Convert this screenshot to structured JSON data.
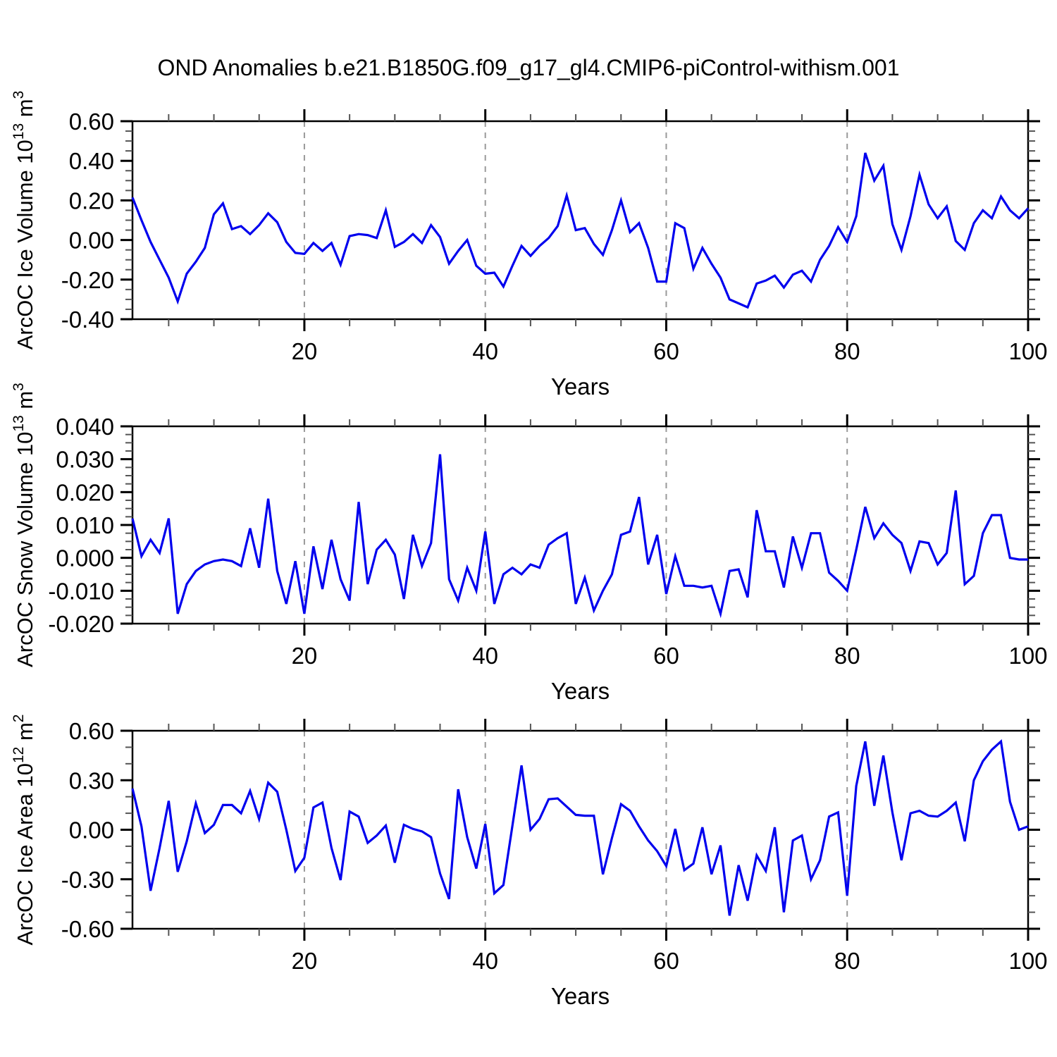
{
  "title": "OND Anomalies b.e21.B1850G.f09_g17_gl4.CMIP6-piControl-withism.001",
  "line_color": "#0000ee",
  "grid_color": "#999999",
  "axis_color": "#000000",
  "chart_data": [
    {
      "type": "line",
      "name": "ice-volume",
      "ylabel": "ArcOC Ice Volume 10^13 m^3",
      "ylabel_parts": [
        {
          "text": "ArcOC Ice Volume 10",
          "sup": false
        },
        {
          "text": "13",
          "sup": true
        },
        {
          "text": " m",
          "sup": false
        },
        {
          "text": "3",
          "sup": true
        }
      ],
      "xlabel": "Years",
      "x_range": [
        1,
        100
      ],
      "x_step": 1,
      "x_ticks": [
        20,
        40,
        60,
        80,
        100
      ],
      "x_tick_labels": [
        "20",
        "40",
        "60",
        "80",
        "100"
      ],
      "x_minor_step": 5,
      "grid_x": [
        20,
        40,
        60,
        80
      ],
      "ylim": [
        -0.4,
        0.6
      ],
      "y_major": 0.2,
      "y_minor": 0.05,
      "y_decimals": 2,
      "values": [
        0.215,
        0.1,
        -0.01,
        -0.1,
        -0.19,
        -0.31,
        -0.17,
        -0.11,
        -0.04,
        0.13,
        0.185,
        0.055,
        0.07,
        0.03,
        0.075,
        0.135,
        0.09,
        -0.01,
        -0.065,
        -0.07,
        -0.015,
        -0.055,
        -0.015,
        -0.125,
        0.02,
        0.03,
        0.025,
        0.01,
        0.15,
        -0.035,
        -0.01,
        0.03,
        -0.015,
        0.075,
        0.015,
        -0.12,
        -0.055,
        0.0,
        -0.13,
        -0.17,
        -0.165,
        -0.235,
        -0.13,
        -0.03,
        -0.08,
        -0.03,
        0.01,
        0.07,
        0.225,
        0.05,
        0.06,
        -0.02,
        -0.075,
        0.05,
        0.2,
        0.04,
        0.085,
        -0.04,
        -0.21,
        -0.21,
        0.085,
        0.06,
        -0.145,
        -0.04,
        -0.12,
        -0.19,
        -0.3,
        -0.32,
        -0.34,
        -0.22,
        -0.205,
        -0.18,
        -0.24,
        -0.175,
        -0.155,
        -0.21,
        -0.1,
        -0.03,
        0.065,
        -0.01,
        0.12,
        0.44,
        0.3,
        0.375,
        0.08,
        -0.05,
        0.12,
        0.33,
        0.18,
        0.11,
        0.17,
        -0.005,
        -0.05,
        0.085,
        0.15,
        0.11,
        0.22,
        0.15,
        0.11,
        0.16
      ]
    },
    {
      "type": "line",
      "name": "snow-volume",
      "ylabel": "ArcOC Snow Volume 10^13 m^3",
      "ylabel_parts": [
        {
          "text": "ArcOC Snow Volume 10",
          "sup": false
        },
        {
          "text": "13",
          "sup": true
        },
        {
          "text": " m",
          "sup": false
        },
        {
          "text": "3",
          "sup": true
        }
      ],
      "xlabel": "Years",
      "x_range": [
        1,
        100
      ],
      "x_step": 1,
      "x_ticks": [
        20,
        40,
        60,
        80,
        100
      ],
      "x_tick_labels": [
        "20",
        "40",
        "60",
        "80",
        "100"
      ],
      "x_minor_step": 5,
      "grid_x": [
        20,
        40,
        60,
        80
      ],
      "ylim": [
        -0.02,
        0.04
      ],
      "y_major": 0.01,
      "y_minor": 0.0025,
      "y_decimals": 3,
      "values": [
        0.012,
        0.0005,
        0.0055,
        0.0015,
        0.012,
        -0.017,
        -0.008,
        -0.004,
        -0.002,
        -0.001,
        -0.0005,
        -0.001,
        -0.0025,
        0.009,
        -0.003,
        0.018,
        -0.004,
        -0.014,
        -0.001,
        -0.017,
        0.0035,
        -0.0095,
        0.0055,
        -0.0065,
        -0.013,
        0.017,
        -0.008,
        0.0025,
        0.0055,
        0.001,
        -0.0125,
        0.007,
        -0.0025,
        0.0045,
        0.0315,
        -0.0065,
        -0.013,
        -0.003,
        -0.01,
        0.008,
        -0.014,
        -0.005,
        -0.003,
        -0.005,
        -0.002,
        -0.003,
        0.004,
        0.006,
        0.0075,
        -0.014,
        -0.006,
        -0.016,
        -0.01,
        -0.005,
        0.007,
        0.008,
        0.0185,
        -0.002,
        0.007,
        -0.011,
        0.0005,
        -0.0085,
        -0.0085,
        -0.009,
        -0.0085,
        -0.017,
        -0.004,
        -0.0035,
        -0.012,
        0.0145,
        0.002,
        0.002,
        -0.009,
        0.0065,
        -0.003,
        0.0075,
        0.0075,
        -0.0045,
        -0.007,
        -0.01,
        0.0025,
        0.0155,
        0.006,
        0.0105,
        0.007,
        0.0045,
        -0.004,
        0.005,
        0.0045,
        -0.002,
        0.0015,
        0.0205,
        -0.008,
        -0.0055,
        0.0075,
        0.013,
        0.013,
        0.0,
        -0.0005,
        -0.0005
      ]
    },
    {
      "type": "line",
      "name": "ice-area",
      "ylabel": "ArcOC Ice Area 10^12 m^2",
      "ylabel_parts": [
        {
          "text": "ArcOC Ice Area 10",
          "sup": false
        },
        {
          "text": "12",
          "sup": true
        },
        {
          "text": " m",
          "sup": false
        },
        {
          "text": "2",
          "sup": true
        }
      ],
      "xlabel": "Years",
      "x_range": [
        1,
        100
      ],
      "x_step": 1,
      "x_ticks": [
        20,
        40,
        60,
        80,
        100
      ],
      "x_tick_labels": [
        "20",
        "40",
        "60",
        "80",
        "100"
      ],
      "x_minor_step": 5,
      "grid_x": [
        20,
        40,
        60,
        80
      ],
      "ylim": [
        -0.6,
        0.6
      ],
      "y_major": 0.3,
      "y_minor": 0.1,
      "y_decimals": 2,
      "values": [
        0.25,
        0.02,
        -0.37,
        -0.11,
        0.175,
        -0.255,
        -0.07,
        0.16,
        -0.02,
        0.03,
        0.15,
        0.15,
        0.1,
        0.235,
        0.065,
        0.285,
        0.23,
        0.0,
        -0.25,
        -0.17,
        0.135,
        0.165,
        -0.11,
        -0.305,
        0.11,
        0.08,
        -0.08,
        -0.035,
        0.025,
        -0.2,
        0.03,
        0.005,
        -0.01,
        -0.045,
        -0.265,
        -0.42,
        0.245,
        -0.045,
        -0.235,
        0.035,
        -0.385,
        -0.335,
        0.025,
        0.39,
        0.0,
        0.065,
        0.185,
        0.19,
        0.14,
        0.09,
        0.085,
        0.085,
        -0.27,
        -0.05,
        0.155,
        0.115,
        0.02,
        -0.065,
        -0.13,
        -0.22,
        0.005,
        -0.245,
        -0.205,
        0.015,
        -0.27,
        -0.095,
        -0.52,
        -0.215,
        -0.43,
        -0.155,
        -0.25,
        0.015,
        -0.5,
        -0.065,
        -0.035,
        -0.3,
        -0.185,
        0.08,
        0.105,
        -0.4,
        0.265,
        0.535,
        0.145,
        0.45,
        0.105,
        -0.185,
        0.1,
        0.115,
        0.085,
        0.08,
        0.115,
        0.165,
        -0.07,
        0.3,
        0.415,
        0.485,
        0.535,
        0.17,
        0.0,
        0.02
      ]
    }
  ]
}
